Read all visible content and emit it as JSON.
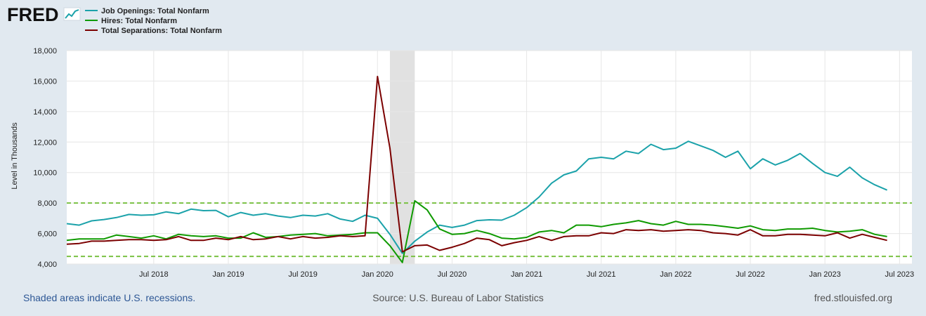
{
  "brand": {
    "logo_text": "FRED",
    "logo_icon": "line-chart-icon"
  },
  "chart_data": {
    "type": "line",
    "xlabel": "",
    "ylabel": "Level in Thousands",
    "ylim": [
      4000,
      18000
    ],
    "yticks": [
      4000,
      6000,
      8000,
      10000,
      12000,
      14000,
      16000,
      18000
    ],
    "ytick_labels": [
      "4,000",
      "6,000",
      "8,000",
      "10,000",
      "12,000",
      "14,000",
      "16,000",
      "18,000"
    ],
    "xlim": [
      "2017-12",
      "2023-08"
    ],
    "xticks": [
      "2018-07",
      "2019-01",
      "2019-07",
      "2020-01",
      "2020-07",
      "2021-01",
      "2021-07",
      "2022-01",
      "2022-07",
      "2023-01",
      "2023-07"
    ],
    "xtick_labels": [
      "Jul 2018",
      "Jan 2019",
      "Jul 2019",
      "Jan 2020",
      "Jul 2020",
      "Jan 2021",
      "Jul 2021",
      "Jan 2022",
      "Jul 2022",
      "Jan 2023",
      "Jul 2023"
    ],
    "grid": true,
    "legend_position": "top-left",
    "recessions": [
      {
        "start": "2020-02",
        "end": "2020-04"
      }
    ],
    "reference_lines": [
      {
        "value": 8000,
        "color": "#7ac143",
        "style": "dashed"
      },
      {
        "value": 4500,
        "color": "#7ac143",
        "style": "dashed"
      }
    ],
    "x_start": "2017-12",
    "series": [
      {
        "name": "Job Openings: Total Nonfarm",
        "color": "#1ba2aa",
        "values": [
          6650,
          6550,
          6830,
          6920,
          7050,
          7250,
          7200,
          7230,
          7420,
          7300,
          7600,
          7500,
          7520,
          7100,
          7380,
          7200,
          7300,
          7150,
          7050,
          7200,
          7150,
          7300,
          6950,
          6800,
          7200,
          7000,
          5950,
          4700,
          5500,
          6100,
          6550,
          6400,
          6550,
          6850,
          6900,
          6880,
          7200,
          7700,
          8400,
          9300,
          9850,
          10100,
          10900,
          11000,
          10900,
          11400,
          11250,
          11850,
          11500,
          11600,
          12050,
          11750,
          11450,
          11000,
          11400,
          10250,
          10900,
          10500,
          10800,
          11250,
          10600,
          10000,
          9750,
          10350,
          9650,
          9200,
          8850
        ]
      },
      {
        "name": "Hires: Total Nonfarm",
        "color": "#0f9a00",
        "values": [
          5550,
          5650,
          5650,
          5650,
          5900,
          5800,
          5700,
          5850,
          5650,
          5950,
          5850,
          5800,
          5850,
          5700,
          5700,
          6050,
          5750,
          5800,
          5900,
          5950,
          6000,
          5850,
          5900,
          5950,
          6050,
          6050,
          5200,
          4100,
          8150,
          7550,
          6300,
          5950,
          6000,
          6200,
          6000,
          5700,
          5650,
          5750,
          6100,
          6200,
          6050,
          6550,
          6550,
          6450,
          6600,
          6700,
          6850,
          6650,
          6550,
          6800,
          6600,
          6600,
          6550,
          6450,
          6350,
          6500,
          6250,
          6200,
          6300,
          6300,
          6350,
          6200,
          6100,
          6150,
          6250,
          5950,
          5800
        ]
      },
      {
        "name": "Total Separations: Total Nonfarm",
        "color": "#7b0000",
        "values": [
          5300,
          5350,
          5500,
          5500,
          5550,
          5600,
          5600,
          5550,
          5600,
          5800,
          5550,
          5550,
          5700,
          5600,
          5800,
          5600,
          5650,
          5800,
          5650,
          5800,
          5700,
          5750,
          5850,
          5800,
          5850,
          16300,
          11600,
          4800,
          5200,
          5250,
          4900,
          5100,
          5350,
          5700,
          5600,
          5200,
          5400,
          5550,
          5800,
          5550,
          5800,
          5850,
          5850,
          6050,
          6000,
          6250,
          6200,
          6250,
          6150,
          6200,
          6250,
          6200,
          6050,
          6000,
          5900,
          6250,
          5850,
          5850,
          5950,
          5950,
          5900,
          5850,
          6050,
          5700,
          5950,
          5750,
          5550
        ]
      }
    ]
  },
  "footer": {
    "recession_note": "Shaded areas indicate U.S. recessions.",
    "source": "Source: U.S. Bureau of Labor Statistics",
    "site": "fred.stlouisfed.org"
  },
  "colors": {
    "background": "#e1e9f0",
    "plot_background": "#ffffff",
    "grid": "#e6e6e6",
    "recession_shade": "#e1e1e1",
    "footer_link": "#2d5795",
    "footer_text": "#555555"
  }
}
